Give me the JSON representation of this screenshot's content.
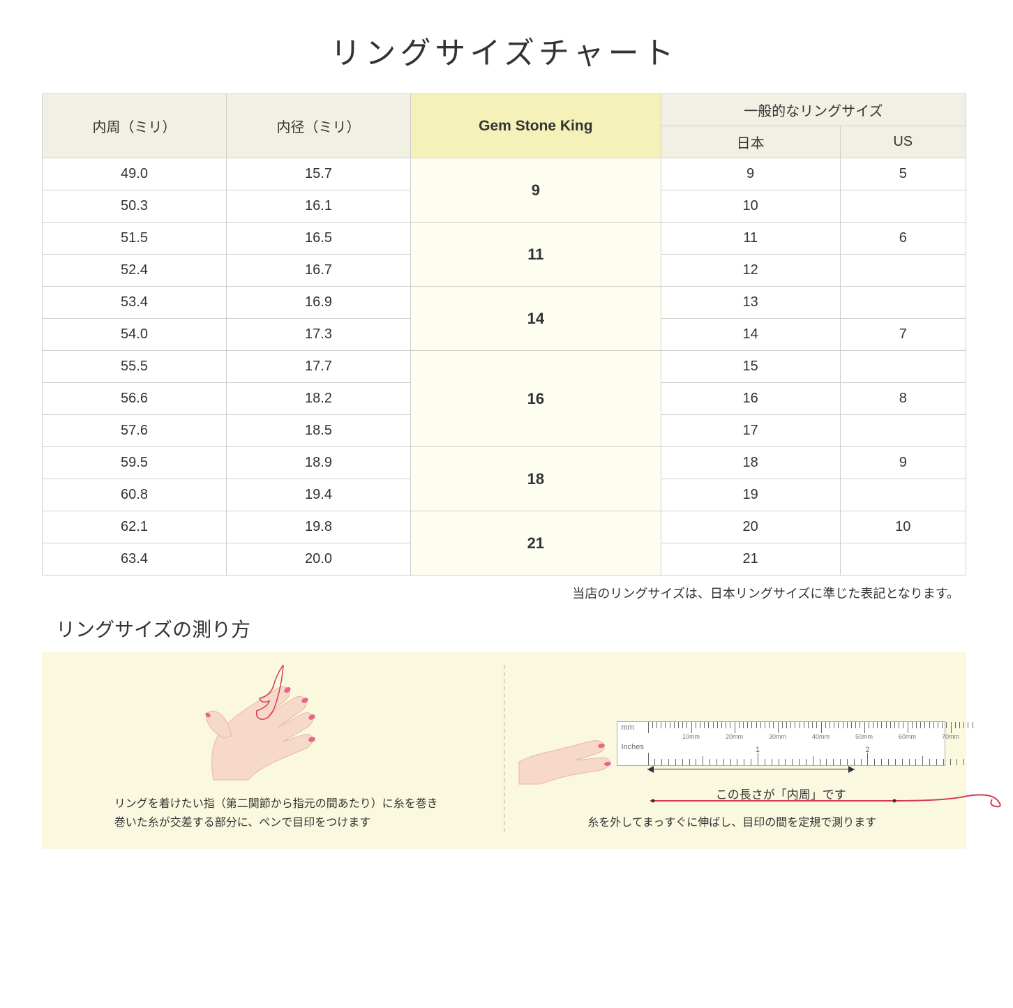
{
  "title": "リングサイズチャート",
  "headers": {
    "circumference": "内周（ミリ）",
    "diameter": "内径（ミリ）",
    "gemstone": "Gem Stone King",
    "general": "一般的なリングサイズ",
    "japan": "日本",
    "us": "US"
  },
  "rows": [
    {
      "circ": "49.0",
      "dia": "15.7",
      "jp": "9",
      "us": "5"
    },
    {
      "circ": "50.3",
      "dia": "16.1",
      "jp": "10",
      "us": ""
    },
    {
      "circ": "51.5",
      "dia": "16.5",
      "jp": "11",
      "us": "6"
    },
    {
      "circ": "52.4",
      "dia": "16.7",
      "jp": "12",
      "us": ""
    },
    {
      "circ": "53.4",
      "dia": "16.9",
      "jp": "13",
      "us": ""
    },
    {
      "circ": "54.0",
      "dia": "17.3",
      "jp": "14",
      "us": "7"
    },
    {
      "circ": "55.5",
      "dia": "17.7",
      "jp": "15",
      "us": ""
    },
    {
      "circ": "56.6",
      "dia": "18.2",
      "jp": "16",
      "us": "8"
    },
    {
      "circ": "57.6",
      "dia": "18.5",
      "jp": "17",
      "us": ""
    },
    {
      "circ": "59.5",
      "dia": "18.9",
      "jp": "18",
      "us": "9"
    },
    {
      "circ": "60.8",
      "dia": "19.4",
      "jp": "19",
      "us": ""
    },
    {
      "circ": "62.1",
      "dia": "19.8",
      "jp": "20",
      "us": "10"
    },
    {
      "circ": "63.4",
      "dia": "20.0",
      "jp": "21",
      "us": ""
    }
  ],
  "gsk_groups": [
    {
      "span": 2,
      "value": "9"
    },
    {
      "span": 2,
      "value": "11"
    },
    {
      "span": 2,
      "value": "14"
    },
    {
      "span": 3,
      "value": "16"
    },
    {
      "span": 2,
      "value": "18"
    },
    {
      "span": 2,
      "value": "21"
    }
  ],
  "note": "当店のリングサイズは、日本リングサイズに準じた表記となります。",
  "howto_title": "リングサイズの測り方",
  "instr_left_1": "リングを着けたい指（第二関節から指元の間あたり）に糸を巻き",
  "instr_left_2": "巻いた糸が交差する部分に、ペンで目印をつけます",
  "caption_right": "この長さが「内周」です",
  "instr_right": "糸を外してまっすぐに伸ばし、目印の間を定規で測ります",
  "ruler": {
    "mm_labels": [
      "10mm",
      "20mm",
      "30mm",
      "40mm",
      "50mm",
      "60mm",
      "70mm"
    ],
    "in_label": "Inches",
    "in_nums": [
      "1",
      "2"
    ],
    "mm_unit": "mm"
  },
  "colors": {
    "header_bg": "#f2f0e4",
    "gemstone_bg": "#f4f2b8",
    "gsk_cell_bg": "#fdfdf0",
    "border": "#d0d0c8",
    "howto_bg": "#fbf8e0",
    "skin": "#f7d9c9",
    "nail": "#e6658a",
    "thread": "#d63a4f"
  }
}
